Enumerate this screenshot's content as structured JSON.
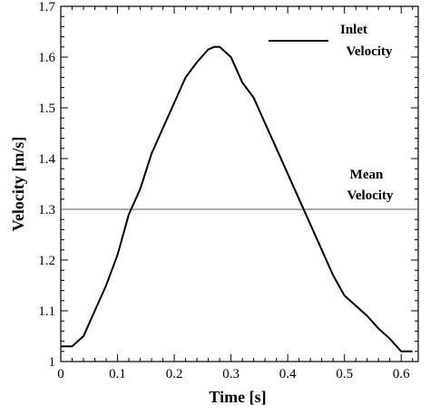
{
  "chart_data": {
    "type": "line",
    "xlabel": "Time [s]",
    "ylabel": "Velocity [m/s]",
    "xlim": [
      0,
      0.63
    ],
    "ylim": [
      1.0,
      1.7
    ],
    "xticks": [
      "0",
      "0.1",
      "0.2",
      "0.3",
      "0.4",
      "0.5",
      "0.6"
    ],
    "xtick_values": [
      0,
      0.1,
      0.2,
      0.3,
      0.4,
      0.5,
      0.6
    ],
    "yticks": [
      "1",
      "1.1",
      "1.2",
      "1.3",
      "1.4",
      "1.5",
      "1.6",
      "1.7"
    ],
    "ytick_values": [
      1.0,
      1.1,
      1.2,
      1.3,
      1.4,
      1.5,
      1.6,
      1.7
    ],
    "grid": false,
    "legend_position": "top-right",
    "series": [
      {
        "name": "Inlet Velocity",
        "color": "#000000",
        "x": [
          0,
          0.02,
          0.04,
          0.06,
          0.08,
          0.1,
          0.12,
          0.14,
          0.16,
          0.18,
          0.2,
          0.22,
          0.24,
          0.26,
          0.27,
          0.28,
          0.29,
          0.3,
          0.32,
          0.34,
          0.36,
          0.38,
          0.4,
          0.42,
          0.44,
          0.46,
          0.48,
          0.5,
          0.52,
          0.54,
          0.56,
          0.58,
          0.6,
          0.61,
          0.62
        ],
        "y": [
          1.03,
          1.03,
          1.05,
          1.1,
          1.15,
          1.21,
          1.29,
          1.34,
          1.41,
          1.46,
          1.51,
          1.56,
          1.59,
          1.615,
          1.62,
          1.62,
          1.61,
          1.6,
          1.55,
          1.52,
          1.47,
          1.42,
          1.37,
          1.32,
          1.27,
          1.22,
          1.17,
          1.13,
          1.11,
          1.09,
          1.065,
          1.045,
          1.02,
          1.02,
          1.02
        ]
      },
      {
        "name": "Mean Velocity",
        "color": "#555555",
        "x": [
          0,
          0.63
        ],
        "y": [
          1.3,
          1.3
        ]
      }
    ],
    "legend": [
      {
        "label_line1": "Inlet",
        "label_line2": "Velocity"
      }
    ],
    "annotations": [
      {
        "label_line1": "Mean",
        "label_line2": "Velocity"
      }
    ]
  }
}
